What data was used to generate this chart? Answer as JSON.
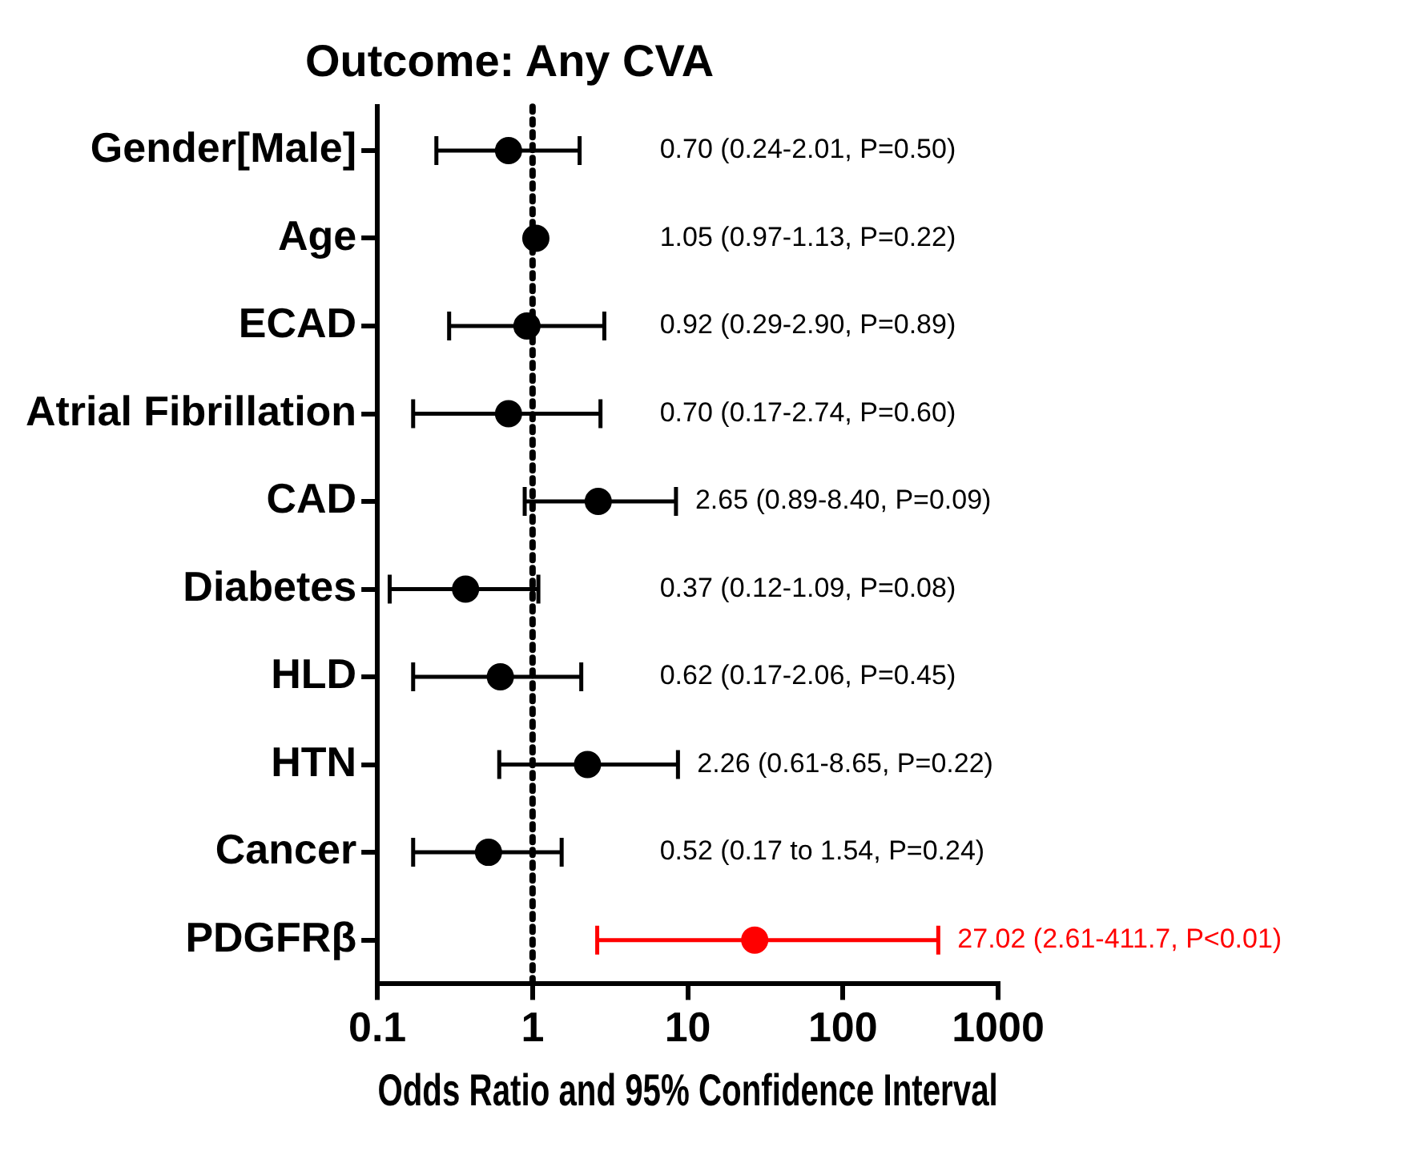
{
  "chart_data": {
    "type": "scatter",
    "orientation": "horizontal",
    "title": "Outcome: Any CVA",
    "xlabel": "Odds Ratio and 95% Confidence Interval",
    "categories": [
      "Gender[Male]",
      "Age",
      "ECAD",
      "Atrial Fibrillation",
      "CAD",
      "Diabetes",
      "HLD",
      "HTN",
      "Cancer",
      "PDGFRβ"
    ],
    "values": [
      0.7,
      1.05,
      0.92,
      0.7,
      2.65,
      0.37,
      0.62,
      2.26,
      0.52,
      27.02
    ],
    "errors": [
      [
        0.24,
        2.01
      ],
      null,
      [
        0.29,
        2.9
      ],
      [
        0.17,
        2.74
      ],
      [
        0.89,
        8.4
      ],
      [
        0.12,
        1.09
      ],
      [
        0.17,
        2.06
      ],
      [
        0.61,
        8.65
      ],
      [
        0.17,
        1.54
      ],
      [
        2.61,
        411.7
      ]
    ],
    "colors": [
      "#000000",
      "#000000",
      "#000000",
      "#000000",
      "#000000",
      "#000000",
      "#000000",
      "#000000",
      "#000000",
      "#ff0000"
    ],
    "annotations": [
      "0.70 (0.24-2.01, P=0.50)",
      "1.05 (0.97-1.13, P=0.22)",
      "0.92 (0.29-2.90, P=0.89)",
      "0.70 (0.17-2.74, P=0.60)",
      "2.65 (0.89-8.40, P=0.09)",
      "0.37 (0.12-1.09, P=0.08)",
      "0.62 (0.17-2.06, P=0.45)",
      "2.26 (0.61-8.65, P=0.22)",
      "0.52 (0.17 to 1.54, P=0.24)",
      "27.02 (2.61-411.7, P<0.01)"
    ],
    "xlim": [
      0.1,
      1000
    ],
    "xticks": [
      0.1,
      1,
      10,
      100,
      1000
    ],
    "log": "x",
    "ref_lines": [
      {
        "axis": "x",
        "value": 1,
        "line_style": "dotted",
        "color": "#000000"
      }
    ],
    "marker": "circle",
    "grid": false,
    "legend": false
  }
}
